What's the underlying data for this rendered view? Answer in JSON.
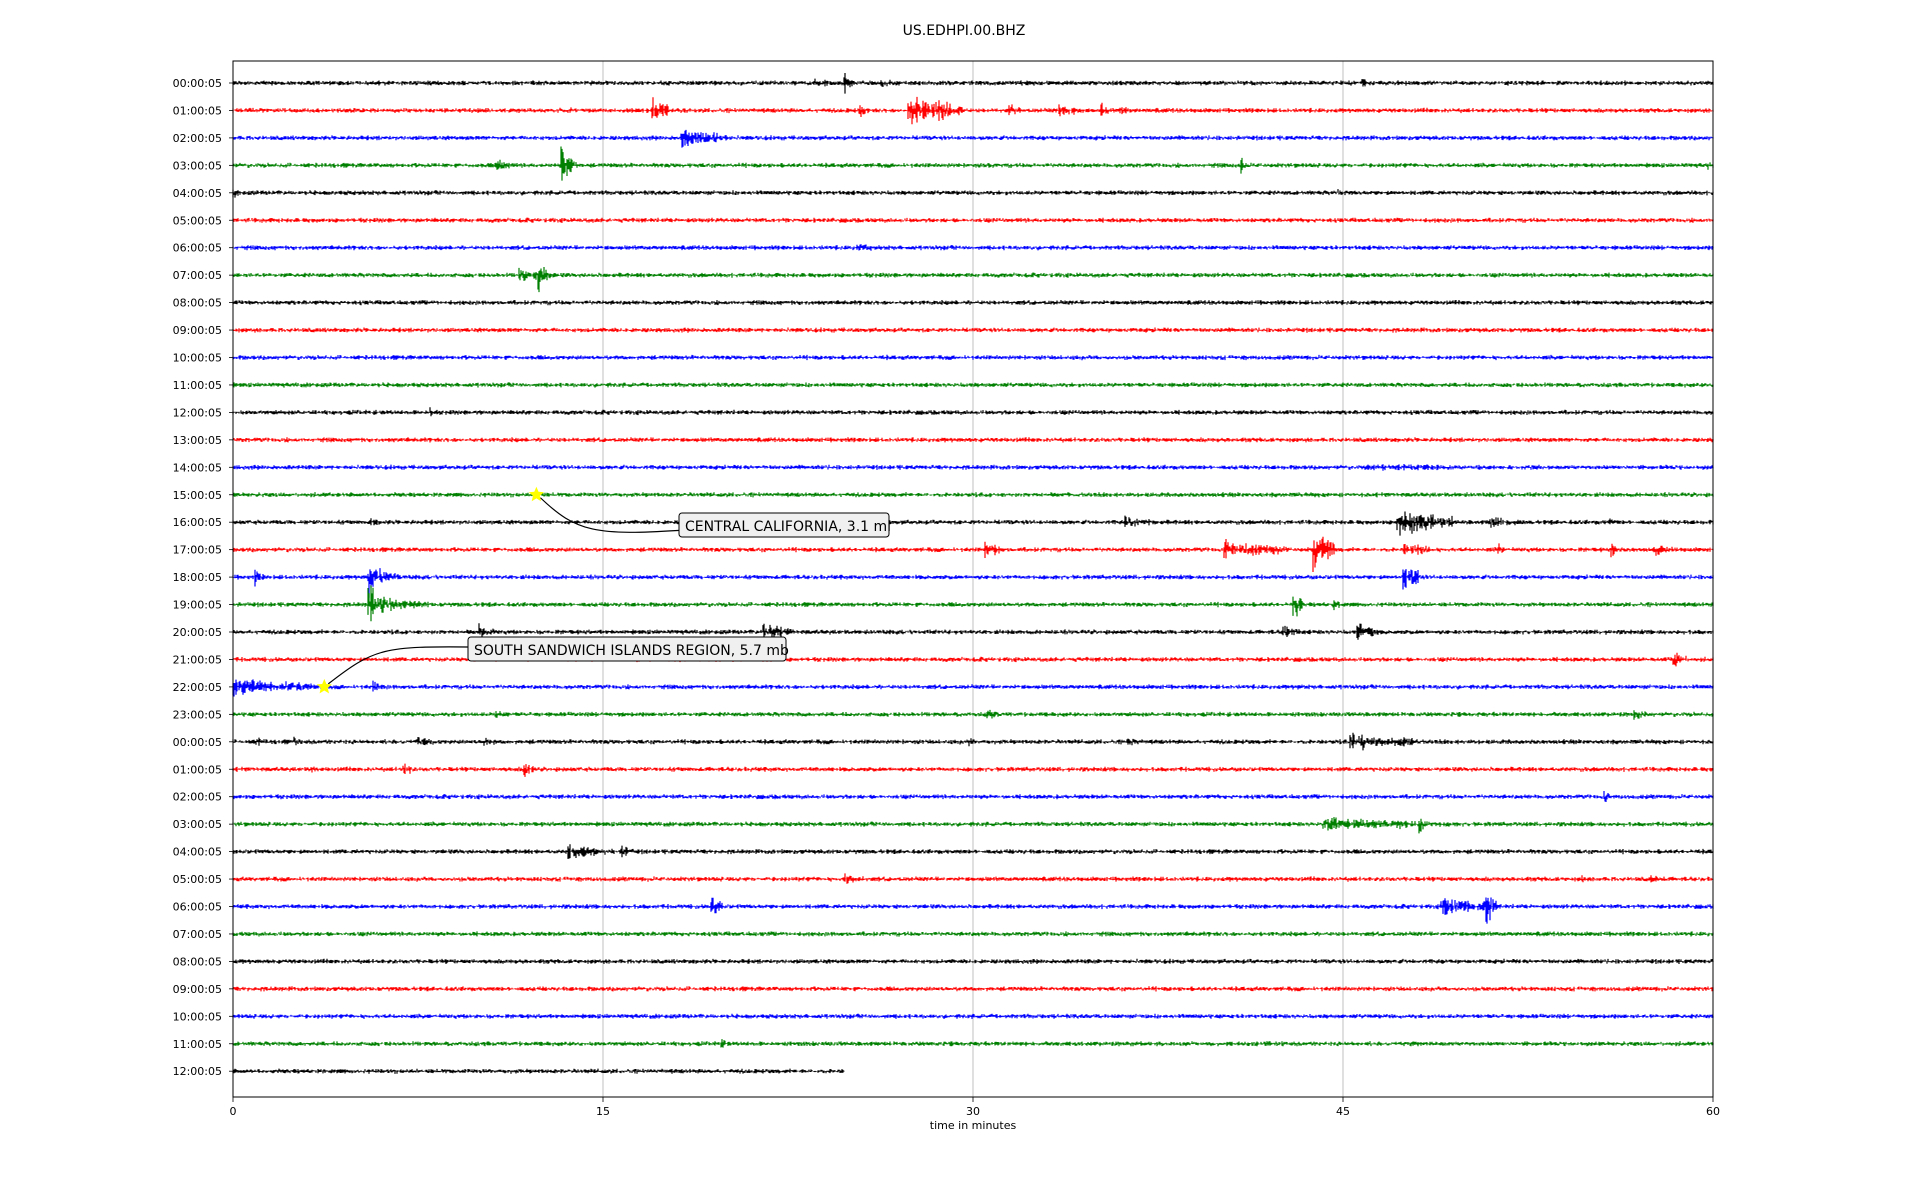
{
  "chart_data": {
    "type": "line",
    "title": "US.EDHPI.00.BHZ",
    "xlabel": "time in minutes",
    "ylabel": "",
    "xlim": [
      0,
      60
    ],
    "xticks": [
      "0",
      "15",
      "30",
      "45",
      "60"
    ],
    "xtick_values": [
      0,
      15,
      30,
      45,
      60
    ],
    "grid": "vertical",
    "row_colors": [
      "#000000",
      "#ff0000",
      "#0000ff",
      "#008000"
    ],
    "row_labels": [
      "00:00:05",
      "01:00:05",
      "02:00:05",
      "03:00:05",
      "04:00:05",
      "05:00:05",
      "06:00:05",
      "07:00:05",
      "08:00:05",
      "09:00:05",
      "10:00:05",
      "11:00:05",
      "12:00:05",
      "13:00:05",
      "14:00:05",
      "15:00:05",
      "16:00:05",
      "17:00:05",
      "18:00:05",
      "19:00:05",
      "20:00:05",
      "21:00:05",
      "22:00:05",
      "23:00:05",
      "00:00:05",
      "01:00:05",
      "02:00:05",
      "03:00:05",
      "04:00:05",
      "05:00:05",
      "06:00:05",
      "07:00:05",
      "08:00:05",
      "09:00:05",
      "10:00:05",
      "11:00:05",
      "12:00:05"
    ],
    "last_row_end_minutes": 24.8,
    "events": [
      {
        "label": "CENTRAL CALIFORNIA, 3.1 ml",
        "row": 15,
        "minute": 12.3,
        "marker_color": "#ffff00"
      },
      {
        "label": "SOUTH SANDWICH ISLANDS REGION, 5.7 mb",
        "row": 22,
        "minute": 3.7,
        "marker_color": "#ffff00"
      }
    ],
    "bursts": [
      [
        0,
        23.6,
        1.5,
        6
      ],
      [
        0,
        24.8,
        0.3,
        16
      ],
      [
        0,
        26.3,
        0.3,
        10
      ],
      [
        0,
        45.8,
        0.4,
        6
      ],
      [
        1,
        13.6,
        0.2,
        8
      ],
      [
        1,
        17.0,
        0.6,
        18
      ],
      [
        1,
        25.4,
        0.2,
        14
      ],
      [
        1,
        27.4,
        2.2,
        22
      ],
      [
        1,
        31.5,
        0.5,
        8
      ],
      [
        1,
        33.5,
        1.0,
        10
      ],
      [
        1,
        35.2,
        0.3,
        10
      ],
      [
        1,
        36.0,
        0.4,
        8
      ],
      [
        2,
        18.2,
        1.5,
        14
      ],
      [
        2,
        19.5,
        0.5,
        10
      ],
      [
        3,
        10.7,
        0.6,
        10
      ],
      [
        3,
        13.3,
        0.6,
        30
      ],
      [
        3,
        30.5,
        0.5,
        4
      ],
      [
        3,
        40.9,
        0.2,
        10
      ],
      [
        3,
        59.8,
        0.3,
        6
      ],
      [
        4,
        0.0,
        0.3,
        8
      ],
      [
        4,
        44.8,
        0.6,
        5
      ],
      [
        6,
        25.3,
        0.6,
        8
      ],
      [
        7,
        11.6,
        1.4,
        10
      ],
      [
        7,
        12.4,
        0.3,
        26
      ],
      [
        12,
        8.0,
        0.2,
        8
      ],
      [
        14,
        46.0,
        7.5,
        5
      ],
      [
        16,
        5.6,
        0.2,
        10
      ],
      [
        16,
        36.2,
        1.2,
        8
      ],
      [
        16,
        47.2,
        2.2,
        18
      ],
      [
        16,
        51.0,
        1.2,
        8
      ],
      [
        16,
        55.8,
        0.3,
        6
      ],
      [
        17,
        30.5,
        0.6,
        14
      ],
      [
        17,
        40.2,
        2.5,
        12
      ],
      [
        17,
        43.8,
        0.8,
        26
      ],
      [
        17,
        47.5,
        1.2,
        10
      ],
      [
        17,
        51.3,
        0.3,
        8
      ],
      [
        17,
        55.9,
        0.2,
        14
      ],
      [
        17,
        57.7,
        0.8,
        8
      ],
      [
        18,
        0.9,
        0.3,
        12
      ],
      [
        18,
        5.5,
        0.6,
        22
      ],
      [
        18,
        5.9,
        0.9,
        10
      ],
      [
        18,
        47.4,
        0.6,
        22
      ],
      [
        18,
        47.8,
        0.4,
        10
      ],
      [
        19,
        5.5,
        0.6,
        28
      ],
      [
        19,
        6.1,
        1.8,
        10
      ],
      [
        19,
        43.0,
        0.3,
        22
      ],
      [
        19,
        44.6,
        0.3,
        10
      ],
      [
        20,
        10.0,
        0.6,
        10
      ],
      [
        20,
        21.5,
        1.2,
        12
      ],
      [
        20,
        42.6,
        0.6,
        12
      ],
      [
        20,
        45.6,
        0.8,
        14
      ],
      [
        21,
        58.4,
        0.5,
        14
      ],
      [
        22,
        0.0,
        3.3,
        12
      ],
      [
        22,
        5.7,
        0.5,
        8
      ],
      [
        22,
        43.2,
        0.2,
        4
      ],
      [
        23,
        10.7,
        0.5,
        6
      ],
      [
        23,
        30.6,
        0.4,
        8
      ],
      [
        23,
        56.8,
        0.5,
        8
      ],
      [
        24,
        0.9,
        0.4,
        8
      ],
      [
        24,
        2.5,
        0.3,
        6
      ],
      [
        24,
        7.5,
        0.6,
        8
      ],
      [
        24,
        10.2,
        0.4,
        8
      ],
      [
        24,
        29.8,
        0.2,
        10
      ],
      [
        24,
        36.3,
        0.4,
        8
      ],
      [
        24,
        45.3,
        2.7,
        12
      ],
      [
        25,
        3.2,
        0.3,
        6
      ],
      [
        25,
        6.9,
        0.3,
        12
      ],
      [
        25,
        11.8,
        0.4,
        12
      ],
      [
        26,
        55.6,
        0.2,
        10
      ],
      [
        27,
        44.2,
        2.8,
        12
      ],
      [
        27,
        47.0,
        2.5,
        8
      ],
      [
        27,
        48.1,
        0.2,
        22
      ],
      [
        28,
        13.6,
        0.6,
        14
      ],
      [
        28,
        14.1,
        1.8,
        8
      ],
      [
        28,
        15.8,
        0.5,
        8
      ],
      [
        29,
        24.8,
        0.7,
        10
      ],
      [
        29,
        54.7,
        0.3,
        6
      ],
      [
        29,
        57.5,
        0.5,
        6
      ],
      [
        30,
        19.4,
        0.4,
        14
      ],
      [
        30,
        49.0,
        2.0,
        16
      ],
      [
        30,
        50.8,
        0.4,
        28
      ],
      [
        35,
        19.8,
        0.3,
        8
      ]
    ]
  }
}
